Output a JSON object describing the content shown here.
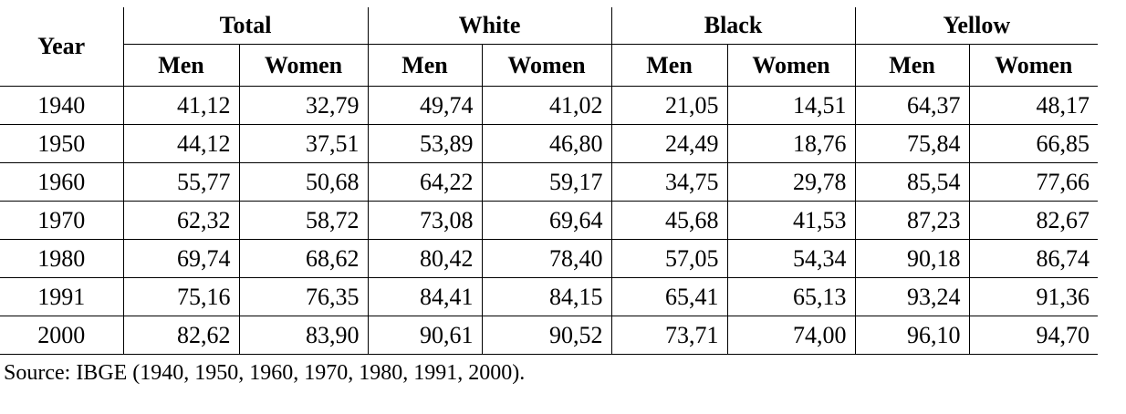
{
  "table": {
    "header": {
      "year": "Year",
      "groups": [
        {
          "label": "Total",
          "columns": [
            "Men",
            "Women"
          ]
        },
        {
          "label": "White",
          "columns": [
            "Men",
            "Women"
          ]
        },
        {
          "label": "Black",
          "columns": [
            "Men",
            "Women"
          ]
        },
        {
          "label": "Yellow",
          "columns": [
            "Men",
            "Women"
          ]
        }
      ]
    },
    "rows": [
      [
        "1940",
        "41,12",
        "32,79",
        "49,74",
        "41,02",
        "21,05",
        "14,51",
        "64,37",
        "48,17"
      ],
      [
        "1950",
        "44,12",
        "37,51",
        "53,89",
        "46,80",
        "24,49",
        "18,76",
        "75,84",
        "66,85"
      ],
      [
        "1960",
        "55,77",
        "50,68",
        "64,22",
        "59,17",
        "34,75",
        "29,78",
        "85,54",
        "77,66"
      ],
      [
        "1970",
        "62,32",
        "58,72",
        "73,08",
        "69,64",
        "45,68",
        "41,53",
        "87,23",
        "82,67"
      ],
      [
        "1980",
        "69,74",
        "68,62",
        "80,42",
        "78,40",
        "57,05",
        "54,34",
        "90,18",
        "86,74"
      ],
      [
        "1991",
        "75,16",
        "76,35",
        "84,41",
        "84,15",
        "65,41",
        "65,13",
        "93,24",
        "91,36"
      ],
      [
        "2000",
        "82,62",
        "83,90",
        "90,61",
        "90,52",
        "73,71",
        "74,00",
        "96,10",
        "94,70"
      ]
    ]
  },
  "source": "Source: IBGE (1940, 1950, 1960, 1970, 1980, 1991, 2000)."
}
